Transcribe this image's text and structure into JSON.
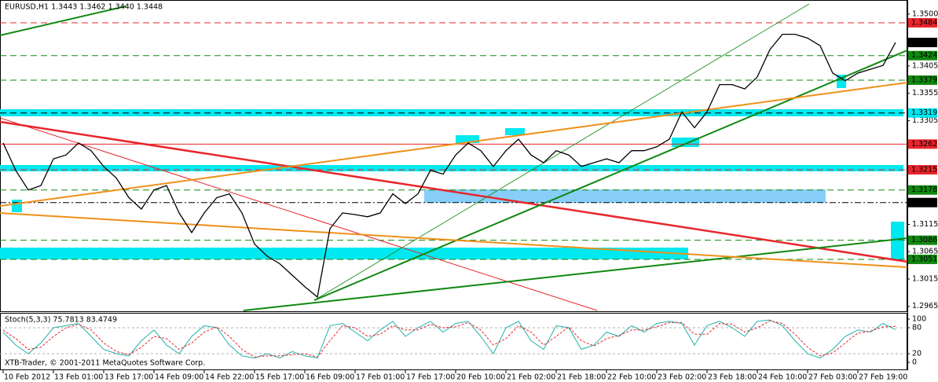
{
  "chart_data": [
    {
      "type": "line",
      "title": "EURUSD,H1  1.3443 1.3462 1.3440 1.3448",
      "categories": [
        "10 Feb 2012",
        null,
        null,
        null,
        "13 Feb 01:00",
        null,
        null,
        null,
        "13 Feb 17:00",
        null,
        null,
        null,
        "14 Feb 09:00",
        null,
        null,
        null,
        "14 Feb 22:00",
        null,
        null,
        null,
        "15 Feb 17:00",
        null,
        null,
        null,
        "16 Feb 09:00",
        null,
        null,
        null,
        "17 Feb 01:00",
        null,
        null,
        null,
        "17 Feb 17:00",
        null,
        null,
        null,
        "20 Feb 10:00",
        null,
        null,
        null,
        "21 Feb 02:00",
        null,
        null,
        null,
        "21 Feb 18:00",
        null,
        null,
        null,
        "22 Feb 10:00",
        null,
        null,
        null,
        "23 Feb 02:00",
        null,
        null,
        null,
        "23 Feb 18:00",
        null,
        null,
        null,
        "24 Feb 10:00",
        null,
        null,
        null,
        "27 Feb 03:00",
        null,
        null,
        null,
        "27 Feb 19:00",
        null,
        null,
        null
      ],
      "values": [
        1.3264,
        1.3214,
        1.3178,
        1.3186,
        1.3235,
        1.3242,
        1.3264,
        1.325,
        1.3221,
        1.32,
        1.3164,
        1.3143,
        1.3178,
        1.3186,
        1.3136,
        1.31,
        1.3136,
        1.3164,
        1.3171,
        1.3136,
        1.3079,
        1.3057,
        1.3043,
        1.3022,
        1.3001,
        1.2982,
        1.3107,
        1.3136,
        1.3133,
        1.3129,
        1.3136,
        1.3171,
        1.3153,
        1.3171,
        1.3214,
        1.3207,
        1.3242,
        1.3264,
        1.325,
        1.3221,
        1.325,
        1.3271,
        1.3242,
        1.3228,
        1.325,
        1.3242,
        1.3221,
        1.3228,
        1.3235,
        1.3228,
        1.325,
        1.325,
        1.3257,
        1.3271,
        1.3321,
        1.3292,
        1.3321,
        1.3371,
        1.3371,
        1.3363,
        1.3385,
        1.3435,
        1.3463,
        1.3463,
        1.3456,
        1.3442,
        1.3392,
        1.3378,
        1.3392,
        1.3399,
        1.3406,
        1.3448
      ],
      "color": "#000000",
      "ylim": [
        1.2956,
        1.352
      ],
      "yticks": [
        {
          "value": 1.35,
          "label": "1.3500"
        },
        1.3405,
        1.3355,
        1.3305,
        1.3115,
        1.3065,
        1.3015,
        1.2965
      ],
      "levels": [
        {
          "value": 1.3484,
          "color": "#e8262b",
          "line": "dashed"
        },
        {
          "value": 1.3448,
          "color": "#000000",
          "line": "none"
        },
        {
          "value": 1.3424,
          "color": "#118811",
          "line": "dashed"
        },
        {
          "value": 1.3379,
          "color": "#118811",
          "line": "dashed"
        },
        {
          "value": 1.3319,
          "color": "#00e8f0",
          "line": "dashed"
        },
        {
          "value": 1.3262,
          "color": "#e8262b",
          "line": "solid"
        },
        {
          "value": 1.3215,
          "color": "#e8262b",
          "line": "dashed"
        },
        {
          "value": 1.3178,
          "color": "#118811",
          "line": "dashed"
        },
        {
          "value": 1.3155,
          "color": "#000000",
          "line": "dashdot"
        },
        {
          "value": 1.3086,
          "color": "#118811",
          "line": "dashed"
        },
        {
          "value": 1.3051,
          "color": "#118811",
          "line": "dashed"
        }
      ]
    },
    {
      "type": "line",
      "title": "Stoch(5,3,3) 75.7813 83.4749",
      "annotation": "XTB-Trader, © 2001-2011 MetaQuotes Software Corp.",
      "ylim": [
        0,
        100
      ],
      "yticks": [
        100,
        80,
        20,
        0
      ],
      "series": [
        {
          "color": "#20b2aa",
          "values": [
            70,
            40,
            20,
            45,
            80,
            85,
            90,
            60,
            30,
            20,
            15,
            50,
            75,
            40,
            20,
            60,
            85,
            80,
            40,
            15,
            10,
            20,
            10,
            25,
            15,
            10,
            85,
            90,
            70,
            50,
            75,
            95,
            60,
            80,
            95,
            70,
            90,
            95,
            60,
            20,
            80,
            95,
            50,
            30,
            85,
            80,
            30,
            40,
            70,
            60,
            85,
            70,
            90,
            95,
            90,
            40,
            85,
            95,
            80,
            60,
            95,
            98,
            85,
            50,
            20,
            10,
            30,
            60,
            75,
            70,
            90,
            75.7813
          ]
        },
        {
          "color": "#e8262b",
          "values": [
            75,
            55,
            30,
            35,
            60,
            80,
            88,
            75,
            45,
            25,
            18,
            35,
            60,
            55,
            30,
            45,
            70,
            82,
            60,
            30,
            12,
            15,
            15,
            18,
            20,
            12,
            50,
            85,
            80,
            60,
            65,
            85,
            75,
            75,
            88,
            80,
            82,
            92,
            75,
            40,
            55,
            85,
            70,
            40,
            60,
            82,
            50,
            38,
            55,
            62,
            75,
            75,
            82,
            92,
            92,
            65,
            65,
            90,
            88,
            70,
            80,
            96,
            90,
            65,
            35,
            15,
            22,
            45,
            68,
            72,
            82,
            83.4749
          ]
        }
      ]
    }
  ]
}
